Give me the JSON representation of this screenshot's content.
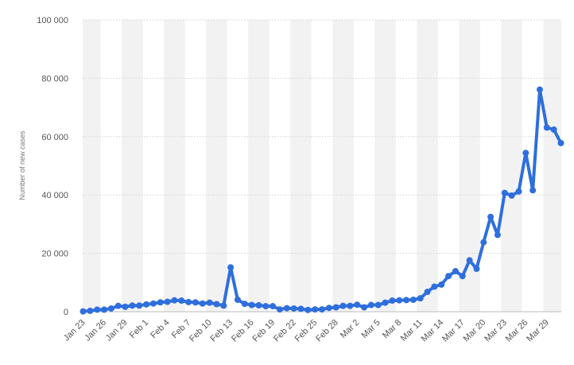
{
  "chart_data": {
    "type": "line",
    "title": "",
    "xlabel": "",
    "ylabel": "Number of new cases",
    "ylim": [
      0,
      100000
    ],
    "yticks": [
      0,
      20000,
      40000,
      60000,
      80000,
      100000
    ],
    "ytick_labels": [
      "0",
      "20 000",
      "40 000",
      "60 000",
      "80 000",
      "100 000"
    ],
    "grid": "horizontal dotted with alternating vertical bands",
    "x_tick_labels": [
      "Jan 23",
      "Jan 26",
      "Jan 29",
      "Feb 1",
      "Feb 4",
      "Feb 7",
      "Feb 10",
      "Feb 13",
      "Feb 16",
      "Feb 19",
      "Feb 22",
      "Feb 25",
      "Feb 28",
      "Mar 2",
      "Mar 5",
      "Mar 8",
      "Mar 11",
      "Mar 14",
      "Mar 17",
      "Mar 20",
      "Mar 23",
      "Mar 26",
      "Mar 29"
    ],
    "x_tick_every": 3,
    "categories": [
      "Jan 23",
      "Jan 24",
      "Jan 25",
      "Jan 26",
      "Jan 27",
      "Jan 28",
      "Jan 29",
      "Jan 30",
      "Jan 31",
      "Feb 1",
      "Feb 2",
      "Feb 3",
      "Feb 4",
      "Feb 5",
      "Feb 6",
      "Feb 7",
      "Feb 8",
      "Feb 9",
      "Feb 10",
      "Feb 11",
      "Feb 12",
      "Feb 13",
      "Feb 14",
      "Feb 15",
      "Feb 16",
      "Feb 17",
      "Feb 18",
      "Feb 19",
      "Feb 20",
      "Feb 21",
      "Feb 22",
      "Feb 23",
      "Feb 24",
      "Feb 25",
      "Feb 26",
      "Feb 27",
      "Feb 28",
      "Feb 29",
      "Mar 1",
      "Mar 2",
      "Mar 3",
      "Mar 4",
      "Mar 5",
      "Mar 6",
      "Mar 7",
      "Mar 8",
      "Mar 9",
      "Mar 10",
      "Mar 11",
      "Mar 12",
      "Mar 13",
      "Mar 14",
      "Mar 15",
      "Mar 16",
      "Mar 17",
      "Mar 18",
      "Mar 19",
      "Mar 20",
      "Mar 21",
      "Mar 22",
      "Mar 23",
      "Mar 24",
      "Mar 25",
      "Mar 26",
      "Mar 27",
      "Mar 28",
      "Mar 29",
      "Mar 30",
      "Mar 31"
    ],
    "series": [
      {
        "color": "#2f6fdc",
        "values": [
          100,
          300,
          700,
          700,
          1100,
          2000,
          1700,
          2100,
          2100,
          2500,
          2800,
          3200,
          3400,
          3900,
          3800,
          3300,
          3200,
          2800,
          3100,
          2600,
          2100,
          15200,
          4100,
          2700,
          2300,
          2200,
          1900,
          1900,
          800,
          1200,
          1100,
          1000,
          600,
          800,
          800,
          1300,
          1500,
          2000,
          2000,
          2400,
          1500,
          2300,
          2300,
          3100,
          3800,
          3900,
          4000,
          4100,
          4600,
          6800,
          8600,
          9300,
          12200,
          13900,
          12200,
          17600,
          14700,
          23800,
          32500,
          26300,
          40700,
          39800,
          41200,
          54400,
          41600,
          76100,
          63100,
          62400,
          57800
        ]
      }
    ]
  }
}
